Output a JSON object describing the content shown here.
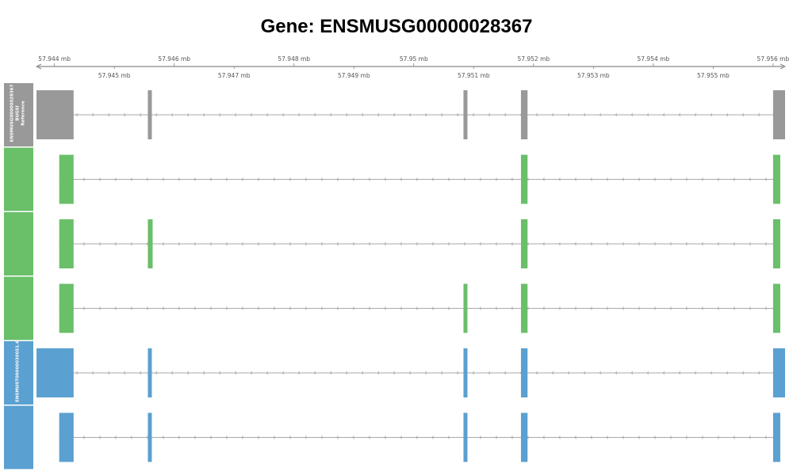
{
  "title": "Gene: ENSMUSG00000028367",
  "colors": {
    "reference": "#999999",
    "green": "#6abf69",
    "blue": "#5aa0d0",
    "intron": "#aaaaaa",
    "axis": "#888888"
  },
  "axis": {
    "range_mb": [
      57.9437,
      57.9562
    ],
    "major_ticks": [
      {
        "value": 57.944,
        "label": "57.944 mb"
      },
      {
        "value": 57.946,
        "label": "57.946 mb"
      },
      {
        "value": 57.948,
        "label": "57.948 mb"
      },
      {
        "value": 57.95,
        "label": "57.95 mb"
      },
      {
        "value": 57.952,
        "label": "57.952 mb"
      },
      {
        "value": 57.954,
        "label": "57.954 mb"
      },
      {
        "value": 57.956,
        "label": "57.956 mb"
      }
    ],
    "minor_ticks": [
      {
        "value": 57.945,
        "label": "57.945 mb"
      },
      {
        "value": 57.947,
        "label": "57.947 mb"
      },
      {
        "value": 57.949,
        "label": "57.949 mb"
      },
      {
        "value": 57.951,
        "label": "57.951 mb"
      },
      {
        "value": 57.953,
        "label": "57.953 mb"
      },
      {
        "value": 57.955,
        "label": "57.955 mb"
      }
    ]
  },
  "groups": [
    {
      "color": "reference",
      "label_lines": [
        "ENSMUSG00000028367",
        "BUGSI",
        "Reference"
      ],
      "tracks": [
        0
      ]
    },
    {
      "color": "green",
      "label_lines": [],
      "tracks": [
        1
      ]
    },
    {
      "color": "green",
      "label_lines": [],
      "tracks": [
        2
      ]
    },
    {
      "color": "green",
      "label_lines": [],
      "tracks": [
        3
      ]
    },
    {
      "color": "blue",
      "label_lines": [
        "ENSMUST00000030051.6"
      ],
      "tracks": [
        4
      ]
    },
    {
      "color": "blue",
      "label_lines": [],
      "tracks": [
        5
      ]
    }
  ],
  "tracks": [
    {
      "color": "reference",
      "exons": [
        [
          57.9437,
          57.94432,
          "wide"
        ],
        [
          57.94556,
          57.94562,
          "tall"
        ],
        [
          57.95083,
          57.95089,
          "tall"
        ],
        [
          57.95179,
          57.9519,
          "tall"
        ],
        [
          57.956,
          57.9562,
          "wide"
        ]
      ]
    },
    {
      "color": "green",
      "exons": [
        [
          57.94408,
          57.94432,
          "narrow"
        ],
        [
          57.95179,
          57.9519,
          "narrow"
        ],
        [
          57.956,
          57.95612,
          "narrow"
        ]
      ]
    },
    {
      "color": "green",
      "exons": [
        [
          57.94408,
          57.94432,
          "narrow"
        ],
        [
          57.94556,
          57.94564,
          "narrow"
        ],
        [
          57.95179,
          57.9519,
          "narrow"
        ],
        [
          57.956,
          57.95612,
          "narrow"
        ]
      ]
    },
    {
      "color": "green",
      "exons": [
        [
          57.94408,
          57.94432,
          "narrow"
        ],
        [
          57.95083,
          57.95089,
          "narrow"
        ],
        [
          57.95179,
          57.9519,
          "narrow"
        ],
        [
          57.956,
          57.95612,
          "narrow"
        ]
      ]
    },
    {
      "color": "blue",
      "exons": [
        [
          57.9437,
          57.94432,
          "wide"
        ],
        [
          57.94556,
          57.94562,
          "tall"
        ],
        [
          57.95083,
          57.95089,
          "tall"
        ],
        [
          57.95179,
          57.9519,
          "tall"
        ],
        [
          57.956,
          57.9562,
          "wide"
        ]
      ]
    },
    {
      "color": "blue",
      "exons": [
        [
          57.94408,
          57.94432,
          "narrow"
        ],
        [
          57.94556,
          57.94562,
          "narrow"
        ],
        [
          57.95083,
          57.95089,
          "narrow"
        ],
        [
          57.95179,
          57.9519,
          "narrow"
        ],
        [
          57.956,
          57.95612,
          "narrow"
        ]
      ]
    }
  ]
}
